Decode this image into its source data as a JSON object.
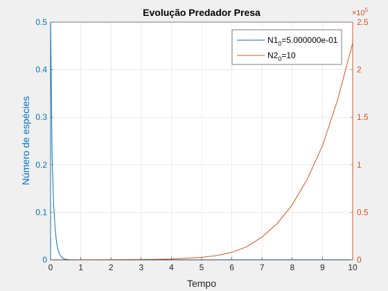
{
  "chart_data": {
    "type": "line",
    "title": "Evolução Predador Presa",
    "xlabel": "Tempo",
    "ylabel_left": "Número de espécies",
    "ylabel_right": "",
    "xlim": [
      0,
      10
    ],
    "ylim_left": [
      0,
      0.5
    ],
    "ylim_right": [
      0,
      250000
    ],
    "right_axis_multiplier": "×10",
    "right_axis_exponent": "5",
    "x_ticks": [
      "0",
      "1",
      "2",
      "3",
      "4",
      "5",
      "6",
      "7",
      "8",
      "9",
      "10"
    ],
    "y_left_ticks": [
      "0",
      "0.1",
      "0.2",
      "0.3",
      "0.4",
      "0.5"
    ],
    "y_right_ticks": [
      "0",
      "0.5",
      "1",
      "1.5",
      "2",
      "2.5"
    ],
    "grid": true,
    "legend_placement": "top-right",
    "colors": {
      "left_axis": "#0072bd",
      "right_axis": "#d95319"
    },
    "series": [
      {
        "name": "N1",
        "name_sub": "0",
        "name_suffix": "=5.000000e-01",
        "axis": "left",
        "color": "#0072bd",
        "x": [
          0,
          0.05,
          0.1,
          0.15,
          0.2,
          0.25,
          0.3,
          0.35,
          0.4,
          0.45,
          0.5,
          0.6,
          0.8,
          1.0,
          2,
          3,
          4,
          5,
          6,
          7,
          8,
          9,
          10
        ],
        "y": [
          0.5,
          0.22,
          0.12,
          0.066,
          0.036,
          0.02,
          0.012,
          0.0065,
          0.0036,
          0.002,
          0.0011,
          0.0004,
          0.0001,
          0,
          0,
          0,
          0,
          0,
          0,
          0,
          0,
          0,
          0
        ]
      },
      {
        "name": "N2",
        "name_sub": "0",
        "name_suffix": "=10",
        "axis": "right",
        "color": "#d95319",
        "x": [
          0,
          1,
          2,
          3,
          4,
          5,
          5.5,
          6,
          6.5,
          7,
          7.5,
          8,
          8.5,
          9,
          9.5,
          10
        ],
        "y": [
          10,
          30,
          90,
          280,
          850,
          2600,
          4500,
          7900,
          13800,
          24000,
          38000,
          58000,
          85000,
          120000,
          168000,
          228000
        ]
      }
    ]
  }
}
